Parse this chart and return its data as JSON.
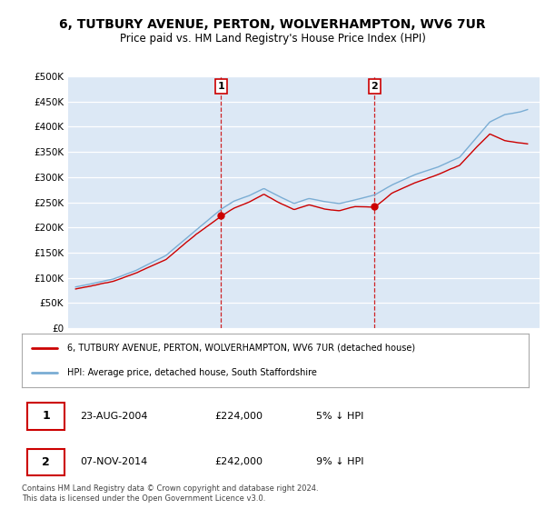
{
  "title": "6, TUTBURY AVENUE, PERTON, WOLVERHAMPTON, WV6 7UR",
  "subtitle": "Price paid vs. HM Land Registry's House Price Index (HPI)",
  "legend_line1": "6, TUTBURY AVENUE, PERTON, WOLVERHAMPTON, WV6 7UR (detached house)",
  "legend_line2": "HPI: Average price, detached house, South Staffordshire",
  "footnote": "Contains HM Land Registry data © Crown copyright and database right 2024.\nThis data is licensed under the Open Government Licence v3.0.",
  "annotation1": {
    "num": "1",
    "date": "23-AUG-2004",
    "price": "£224,000",
    "pct": "5% ↓ HPI"
  },
  "annotation2": {
    "num": "2",
    "date": "07-NOV-2014",
    "price": "£242,000",
    "pct": "9% ↓ HPI"
  },
  "sale1_year": 2004.65,
  "sale2_year": 2014.85,
  "sale1_price": 224000,
  "sale2_price": 242000,
  "background_color": "#dce8f5",
  "plot_background": "#dce8f5",
  "red_line_color": "#cc0000",
  "blue_line_color": "#7aadd4",
  "annotation_line_color": "#cc0000",
  "ylabel_ticks": [
    "£0",
    "£50K",
    "£100K",
    "£150K",
    "£200K",
    "£250K",
    "£300K",
    "£350K",
    "£400K",
    "£450K",
    "£500K"
  ],
  "ytick_vals": [
    0,
    50000,
    100000,
    150000,
    200000,
    250000,
    300000,
    350000,
    400000,
    450000,
    500000
  ],
  "xmin": 1994.5,
  "xmax": 2025.8,
  "ymin": 0,
  "ymax": 500000
}
